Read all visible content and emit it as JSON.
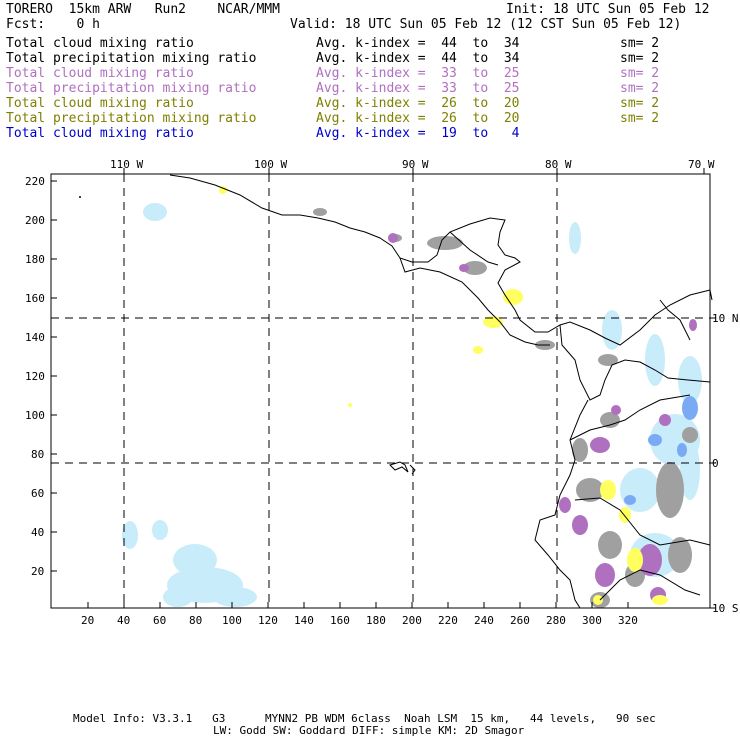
{
  "header": {
    "model": "TORERO  15km ARW   Run2    NCAR/MMM",
    "init": "Init: 18 UTC Sun 05 Feb 12",
    "fcst": "Fcst:    0 h",
    "valid": "Valid: 18 UTC Sun 05 Feb 12 (12 CST Sun 05 Feb 12)"
  },
  "legend": [
    {
      "name": "Total cloud mixing ratio",
      "index_text": "Avg. k-index =  44  to  34",
      "sm": "sm= 2",
      "color": "#000000"
    },
    {
      "name": "Total precipitation mixing ratio",
      "index_text": "Avg. k-index =  44  to  34",
      "sm": "sm= 2",
      "color": "#000000"
    },
    {
      "name": "Total cloud mixing ratio",
      "index_text": "Avg. k-index =  33  to  25",
      "sm": "sm= 2",
      "color": "#b070c0"
    },
    {
      "name": "Total precipitation mixing ratio",
      "index_text": "Avg. k-index =  33  to  25",
      "sm": "sm= 2",
      "color": "#b070c0"
    },
    {
      "name": "Total cloud mixing ratio",
      "index_text": "Avg. k-index =  26  to  20",
      "sm": "sm= 2",
      "color": "#808000"
    },
    {
      "name": "Total precipitation mixing ratio",
      "index_text": "Avg. k-index =  26  to  20",
      "sm": "sm= 2",
      "color": "#808000"
    },
    {
      "name": "Total cloud mixing ratio",
      "index_text": "Avg. k-index =  19  to   4",
      "sm": "",
      "color": "#0000cc"
    }
  ],
  "axes": {
    "lon_labels": [
      "110 W",
      "100 W",
      "90 W",
      "80 W",
      "70 W"
    ],
    "lat_labels": [
      "10 N",
      "0",
      "10 S"
    ],
    "y_ticks": [
      "220",
      "200",
      "180",
      "160",
      "140",
      "120",
      "100",
      "80",
      "60",
      "40",
      "20"
    ],
    "x_ticks": [
      "20",
      "40",
      "60",
      "80",
      "100",
      "120",
      "140",
      "160",
      "180",
      "200",
      "220",
      "240",
      "260",
      "280",
      "300",
      "320"
    ]
  },
  "colors": {
    "gray_field": "#a0a0a0",
    "purple_field": "#b070c0",
    "yellow_field": "#ffff60",
    "lightblue_field": "#c8ecfa",
    "blue_field": "#7aaaf4"
  },
  "footer": {
    "line1": "Model Info: V3.3.1   G3      MYNN2 PB WDM 6class  Noah LSM  15 km,   44 levels,   90 sec",
    "line2": "LW: Godd SW: Goddard DIFF: simple KM: 2D Smagor"
  }
}
